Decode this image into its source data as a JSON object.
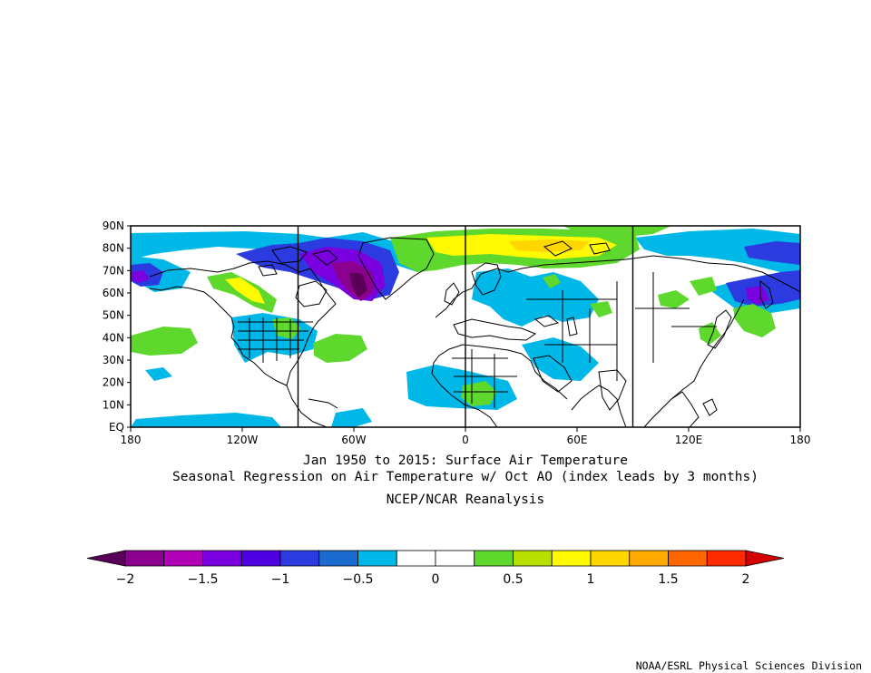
{
  "map": {
    "lat_labels": [
      "90N",
      "80N",
      "70N",
      "60N",
      "50N",
      "40N",
      "30N",
      "20N",
      "10N",
      "EQ"
    ],
    "lon_labels": [
      "180",
      "120W",
      "60W",
      "0",
      "60E",
      "120E",
      "180"
    ],
    "frame_color": "#000000",
    "land_outline_color": "#000000"
  },
  "titles": {
    "line1": "Jan 1950 to 2015: Surface Air Temperature",
    "line2": "Seasonal Regression on Air Temperature  w/ Oct AO (index leads by 3 months)",
    "line3": "NCEP/NCAR Reanalysis"
  },
  "colorbar": {
    "labels": [
      "−2",
      "−1.5",
      "−1",
      "−0.5",
      "0",
      "0.5",
      "1",
      "1.5",
      "2"
    ],
    "colors": [
      "#5a0057",
      "#8c0090",
      "#b000b8",
      "#7a00e0",
      "#4d00e0",
      "#2b3be0",
      "#1a6ad0",
      "#00b8e8",
      "#ffffff",
      "#ffffff",
      "#5fd82e",
      "#b8e000",
      "#fffa00",
      "#ffd600",
      "#ffaa00",
      "#ff6600",
      "#ff2a00",
      "#d40000"
    ]
  },
  "credit": "NOAA/ESRL Physical Sciences Division"
}
